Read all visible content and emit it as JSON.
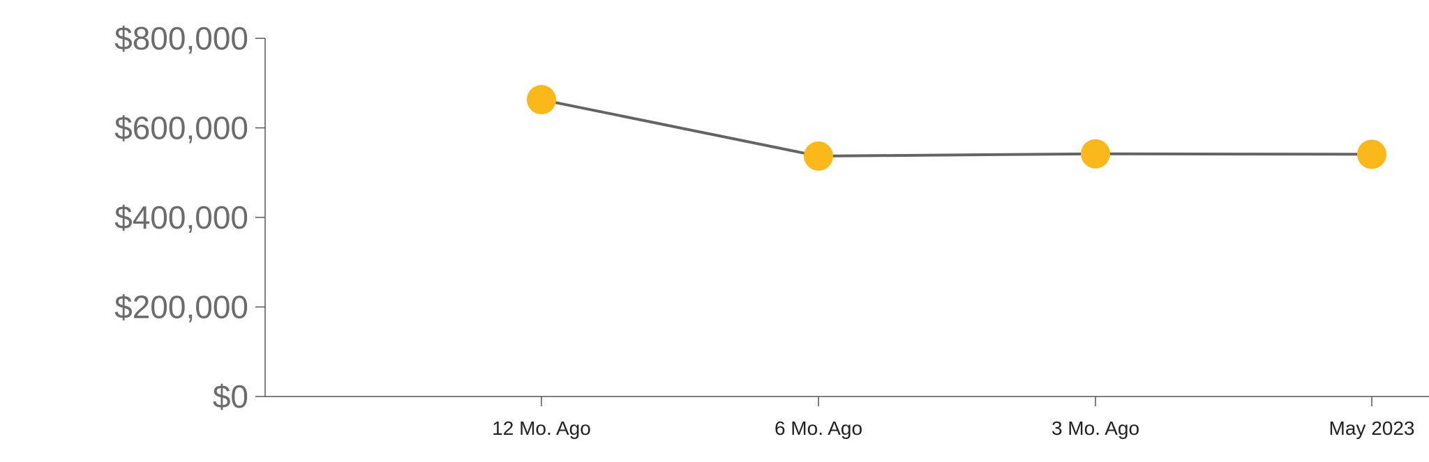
{
  "chart_data": {
    "type": "line",
    "categories": [
      "12 Mo. Ago",
      "6 Mo. Ago",
      "3 Mo. Ago",
      "May 2023"
    ],
    "series": [
      {
        "values": [
          663000,
          537000,
          542000,
          541000
        ]
      }
    ],
    "y_ticks": [
      "$0",
      "$200,000",
      "$400,000",
      "$600,000",
      "$800,000"
    ],
    "y_tick_values": [
      0,
      200000,
      400000,
      600000,
      800000
    ],
    "ylim": [
      0,
      800000
    ],
    "title": "",
    "xlabel": "",
    "ylabel": "",
    "grid": false,
    "colors": {
      "line": "#646464",
      "marker": "#fbb81b",
      "axis": "#555555",
      "y_tick_text": "#6b6b6b",
      "x_tick_text": "#222222"
    }
  }
}
